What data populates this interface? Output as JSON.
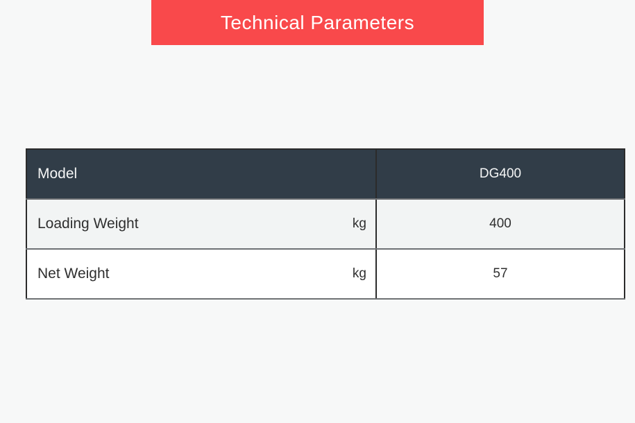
{
  "banner": {
    "title": "Technical Parameters",
    "bg_color": "#f9494b",
    "text_color": "#ffffff"
  },
  "table": {
    "header": {
      "left_label": "Model",
      "right_label": "DG400"
    },
    "rows": [
      {
        "name": "Loading Weight",
        "unit": "kg",
        "value": "400"
      },
      {
        "name": "Net Weight",
        "unit": "kg",
        "value": "57"
      }
    ],
    "colors": {
      "header_bg": "#313d48",
      "header_text": "#f5f6f6",
      "row_alt_bg": "#f2f4f4",
      "row_bg": "#ffffff",
      "outer_border": "#2b2b2b",
      "inner_border": "#6e7174",
      "body_text": "#2f2f2f",
      "page_bg": "#f7f8f8"
    }
  }
}
